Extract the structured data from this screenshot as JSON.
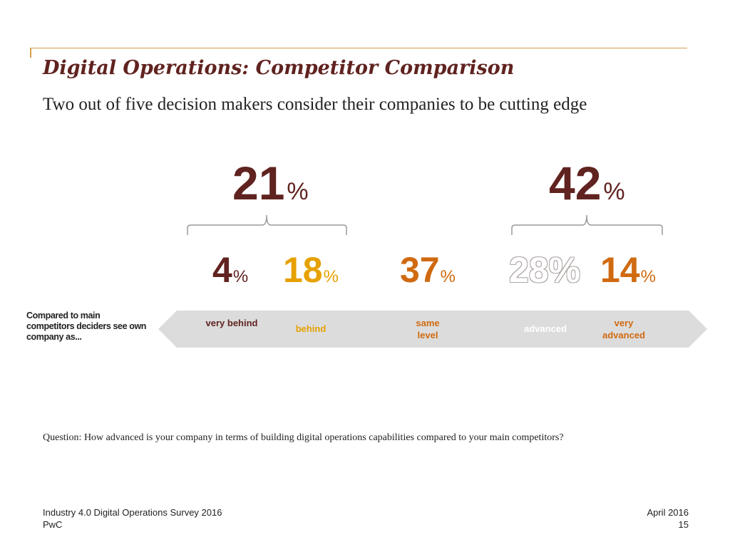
{
  "slide": {
    "title": "Digital Operations: Competitor Comparison",
    "subtitle": "Two out of five decision makers consider their companies to be cutting edge"
  },
  "chart_data": {
    "type": "bar",
    "categories": [
      "very behind",
      "behind",
      "same\nlevel",
      "advanced",
      "very\nadvanced"
    ],
    "values": [
      4,
      18,
      37,
      28,
      14
    ],
    "value_labels": [
      "4",
      "18",
      "37",
      "28%",
      "14"
    ],
    "groups": [
      {
        "members": [
          "very behind",
          "behind"
        ],
        "value": 21,
        "label": "21"
      },
      {
        "members": [
          "advanced",
          "very\nadvanced"
        ],
        "value": 42,
        "label": "42"
      }
    ],
    "unit": "%",
    "axis_title": "Compared to main competitors deciders see own company as...",
    "colors": {
      "very behind": "#602320",
      "behind": "#e6a100",
      "same\nlevel": "#d06a10",
      "advanced": "#ffffff",
      "very\nadvanced": "#d06a10",
      "group": "#602320",
      "scale_bar": "#dcdcdc",
      "accent_line": "#d4a04c"
    }
  },
  "question": "Question: How advanced is your company in terms of building digital operations capabilities compared to your main competitors?",
  "footer": {
    "survey": "Industry 4.0 Digital Operations Survey 2016",
    "company": "PwC",
    "date": "April 2016",
    "page": "15"
  }
}
